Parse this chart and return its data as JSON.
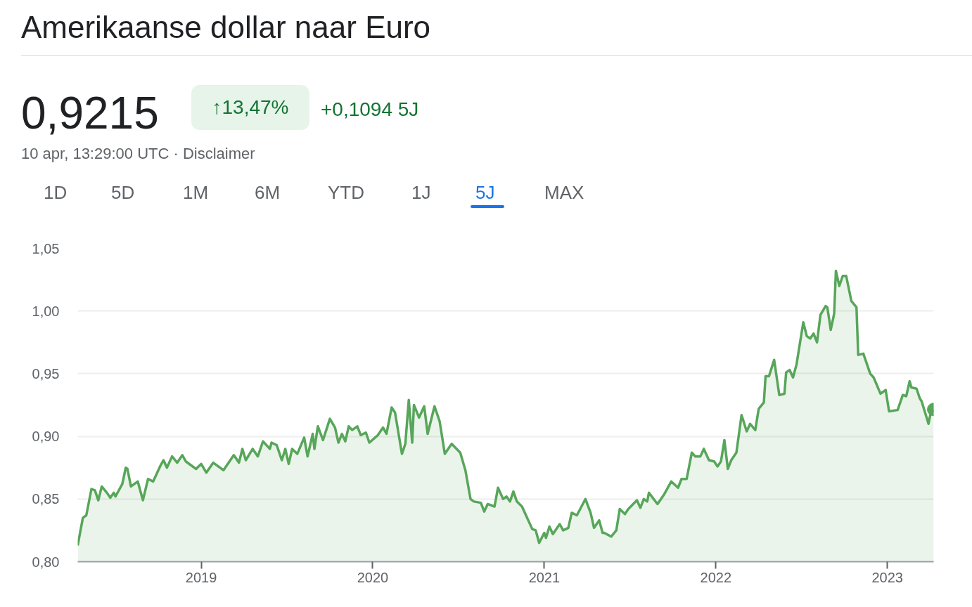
{
  "chart_data": {
    "type": "area",
    "title": "Amerikaanse dollar naar Euro",
    "annotations": [
      "0,9215",
      "↑13,47%",
      "+0,1094 5J",
      "10 apr, 13:29:00 UTC · Disclaimer",
      "1D",
      "5D",
      "1M",
      "6M",
      "YTD",
      "1J",
      "5J",
      "MAX"
    ],
    "x": [
      2018.28,
      2018.31,
      2018.33,
      2018.36,
      2018.38,
      2018.4,
      2018.42,
      2018.45,
      2018.47,
      2018.49,
      2018.5,
      2018.54,
      2018.56,
      2018.57,
      2018.59,
      2018.63,
      2018.66,
      2018.69,
      2018.72,
      2018.76,
      2018.78,
      2018.8,
      2018.83,
      2018.86,
      2018.89,
      2018.91,
      2018.97,
      2019.0,
      2019.03,
      2019.07,
      2019.13,
      2019.19,
      2019.22,
      2019.24,
      2019.26,
      2019.3,
      2019.33,
      2019.36,
      2019.4,
      2019.41,
      2019.44,
      2019.47,
      2019.49,
      2019.51,
      2019.53,
      2019.56,
      2019.6,
      2019.62,
      2019.65,
      2019.66,
      2019.68,
      2019.71,
      2019.75,
      2019.78,
      2019.8,
      2019.82,
      2019.84,
      2019.86,
      2019.88,
      2019.91,
      2019.93,
      2019.96,
      2019.98,
      2020.03,
      2020.06,
      2020.08,
      2020.11,
      2020.13,
      2020.17,
      2020.19,
      2020.21,
      2020.23,
      2020.24,
      2020.27,
      2020.3,
      2020.32,
      2020.36,
      2020.39,
      2020.42,
      2020.46,
      2020.51,
      2020.54,
      2020.57,
      2020.59,
      2020.63,
      2020.65,
      2020.67,
      2020.71,
      2020.73,
      2020.76,
      2020.78,
      2020.8,
      2020.82,
      2020.84,
      2020.87,
      2020.93,
      2020.95,
      2020.97,
      2021.0,
      2021.01,
      2021.03,
      2021.05,
      2021.09,
      2021.11,
      2021.14,
      2021.16,
      2021.19,
      2021.24,
      2021.27,
      2021.29,
      2021.32,
      2021.34,
      2021.35,
      2021.39,
      2021.42,
      2021.44,
      2021.47,
      2021.49,
      2021.54,
      2021.56,
      2021.58,
      2021.6,
      2021.61,
      2021.66,
      2021.7,
      2021.74,
      2021.78,
      2021.8,
      2021.83,
      2021.86,
      2021.88,
      2021.91,
      2021.93,
      2021.96,
      2021.99,
      2022.01,
      2022.03,
      2022.05,
      2022.07,
      2022.09,
      2022.12,
      2022.15,
      2022.18,
      2022.2,
      2022.23,
      2022.25,
      2022.28,
      2022.29,
      2022.31,
      2022.34,
      2022.37,
      2022.4,
      2022.41,
      2022.43,
      2022.45,
      2022.47,
      2022.51,
      2022.53,
      2022.55,
      2022.57,
      2022.59,
      2022.61,
      2022.64,
      2022.65,
      2022.67,
      2022.69,
      2022.7,
      2022.72,
      2022.74,
      2022.76,
      2022.79,
      2022.82,
      2022.83,
      2022.86,
      2022.88,
      2022.9,
      2022.92,
      2022.96,
      2022.99,
      2023.01,
      2023.06,
      2023.09,
      2023.11,
      2023.13,
      2023.14,
      2023.17,
      2023.19,
      2023.2,
      2023.24,
      2023.25,
      2023.27
    ],
    "series": [
      {
        "color": "#57a65a",
        "values": [
          0.813,
          0.835,
          0.837,
          0.858,
          0.857,
          0.849,
          0.86,
          0.855,
          0.851,
          0.855,
          0.852,
          0.862,
          0.875,
          0.874,
          0.86,
          0.864,
          0.849,
          0.866,
          0.864,
          0.876,
          0.881,
          0.875,
          0.884,
          0.879,
          0.885,
          0.88,
          0.874,
          0.878,
          0.871,
          0.879,
          0.873,
          0.885,
          0.879,
          0.89,
          0.881,
          0.89,
          0.884,
          0.896,
          0.89,
          0.895,
          0.893,
          0.881,
          0.89,
          0.878,
          0.89,
          0.886,
          0.899,
          0.884,
          0.902,
          0.89,
          0.908,
          0.897,
          0.914,
          0.907,
          0.895,
          0.902,
          0.896,
          0.908,
          0.905,
          0.908,
          0.901,
          0.903,
          0.895,
          0.901,
          0.907,
          0.902,
          0.923,
          0.919,
          0.886,
          0.894,
          0.929,
          0.895,
          0.925,
          0.915,
          0.924,
          0.902,
          0.924,
          0.912,
          0.886,
          0.894,
          0.887,
          0.873,
          0.85,
          0.848,
          0.847,
          0.84,
          0.846,
          0.844,
          0.859,
          0.85,
          0.852,
          0.848,
          0.856,
          0.848,
          0.844,
          0.826,
          0.825,
          0.815,
          0.823,
          0.819,
          0.828,
          0.822,
          0.83,
          0.825,
          0.827,
          0.839,
          0.837,
          0.85,
          0.839,
          0.827,
          0.833,
          0.823,
          0.823,
          0.82,
          0.825,
          0.842,
          0.838,
          0.842,
          0.849,
          0.843,
          0.85,
          0.848,
          0.855,
          0.846,
          0.854,
          0.864,
          0.859,
          0.866,
          0.866,
          0.887,
          0.884,
          0.884,
          0.89,
          0.881,
          0.88,
          0.876,
          0.88,
          0.897,
          0.874,
          0.881,
          0.887,
          0.917,
          0.904,
          0.91,
          0.905,
          0.922,
          0.927,
          0.948,
          0.948,
          0.961,
          0.933,
          0.934,
          0.951,
          0.953,
          0.947,
          0.957,
          0.991,
          0.98,
          0.978,
          0.982,
          0.975,
          0.997,
          1.004,
          1.003,
          0.985,
          0.998,
          1.032,
          1.02,
          1.028,
          1.028,
          1.008,
          1.003,
          0.965,
          0.966,
          0.958,
          0.95,
          0.947,
          0.934,
          0.937,
          0.92,
          0.921,
          0.933,
          0.932,
          0.944,
          0.939,
          0.938,
          0.93,
          0.928,
          0.91,
          0.917,
          0.9215
        ]
      }
    ],
    "xlim": [
      2018.28,
      2023.27
    ],
    "xticks": [
      2019,
      2020,
      2021,
      2022,
      2023
    ],
    "ylim": [
      0.8,
      1.05
    ],
    "yticks": [
      {
        "value": 0.8,
        "label": "0,80"
      },
      {
        "value": 0.85,
        "label": "0,85"
      },
      {
        "value": 0.9,
        "label": "0,90"
      },
      {
        "value": 0.95,
        "label": "0,95"
      },
      {
        "value": 1.0,
        "label": "1,00"
      },
      {
        "value": 1.05,
        "label": "1,05"
      }
    ],
    "grid": "y",
    "line_style": "solid"
  }
}
